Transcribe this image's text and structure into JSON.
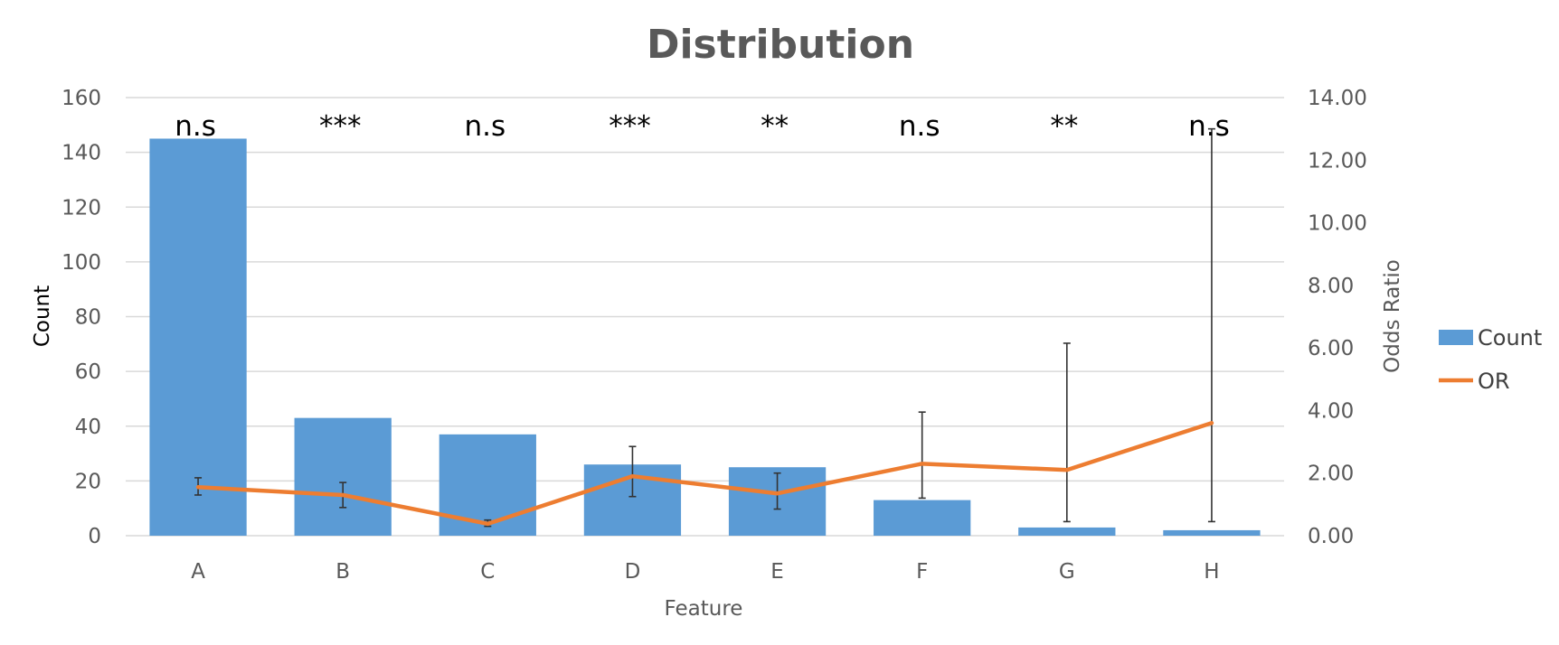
{
  "chart_data": {
    "type": "bar",
    "title": "Distribution",
    "xlabel": "Feature",
    "ylabel": "Count",
    "y2label": "Odds Ratio",
    "categories": [
      "A",
      "B",
      "C",
      "D",
      "E",
      "F",
      "G",
      "H"
    ],
    "ylim": [
      0,
      160
    ],
    "y_ticks": [
      "0",
      "20",
      "40",
      "60",
      "80",
      "100",
      "120",
      "140",
      "160"
    ],
    "y2lim": [
      0,
      14
    ],
    "y2_ticks": [
      "0.00",
      "2.00",
      "4.00",
      "6.00",
      "8.00",
      "10.00",
      "12.00",
      "14.00"
    ],
    "grid": true,
    "legend_position": "right",
    "series": [
      {
        "name": "Count",
        "type": "bar",
        "axis": "primary",
        "color": "#5b9bd5",
        "values": [
          145,
          43,
          37,
          26,
          25,
          13,
          3,
          2
        ]
      },
      {
        "name": "OR",
        "type": "line",
        "axis": "secondary",
        "color": "#ed7d31",
        "values": [
          1.55,
          1.3,
          0.38,
          1.9,
          1.35,
          2.3,
          2.1,
          3.6
        ],
        "error_low": [
          1.3,
          0.9,
          0.3,
          1.25,
          0.85,
          1.2,
          0.45,
          0.45
        ],
        "error_high": [
          1.85,
          1.7,
          0.5,
          2.85,
          2.0,
          3.95,
          6.15,
          13.0
        ]
      }
    ],
    "significance": [
      "n.s",
      "***",
      "n.s",
      "***",
      "**",
      "n.s",
      "**",
      "n.s"
    ]
  }
}
